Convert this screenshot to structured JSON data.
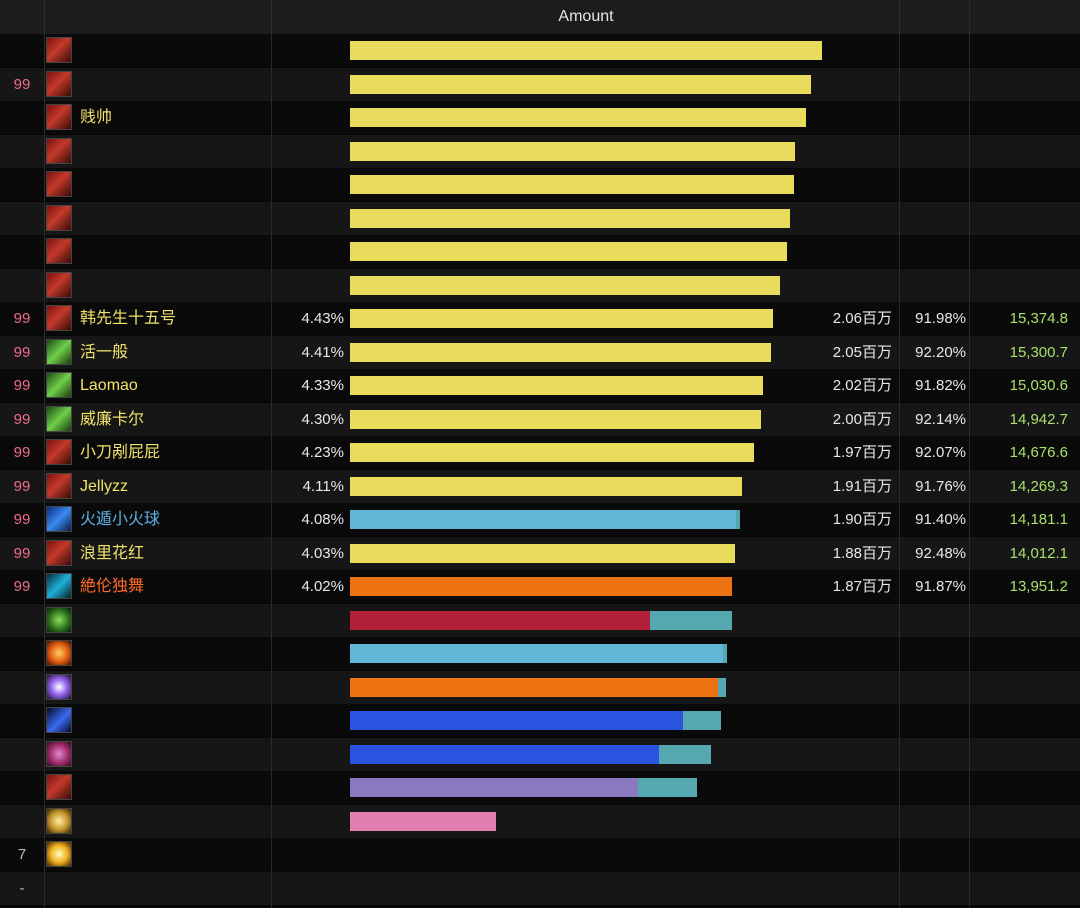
{
  "header": {
    "title": "Amount"
  },
  "colors": {
    "yellow": "#e9db5b",
    "light_blue": "#62b7d8",
    "orange": "#ec7212",
    "red": "#b3203a",
    "teal": "#56a8b0",
    "blue": "#2a54e0",
    "purple": "#8a78c0",
    "pink": "#e07fb0"
  },
  "rows": [
    {
      "rank": "",
      "icon": "warrior-icon",
      "name": "",
      "name_color": "yellow",
      "percent": "",
      "amount": "",
      "active": "",
      "dps": "",
      "bar": [
        {
          "fraction": 1.0,
          "color": "yellow"
        }
      ]
    },
    {
      "rank": "99",
      "icon": "warrior-icon",
      "name": "",
      "name_color": "yellow",
      "percent": "",
      "amount": "",
      "active": "",
      "dps": "",
      "bar": [
        {
          "fraction": 0.977,
          "color": "yellow"
        }
      ]
    },
    {
      "rank": "",
      "icon": "warrior-icon",
      "name": "贱帅",
      "name_color": "yellow",
      "percent": "",
      "amount": "",
      "active": "",
      "dps": "",
      "bar": [
        {
          "fraction": 0.967,
          "color": "yellow"
        }
      ]
    },
    {
      "rank": "",
      "icon": "warrior-icon",
      "name": "",
      "name_color": "yellow",
      "percent": "",
      "amount": "",
      "active": "",
      "dps": "",
      "bar": [
        {
          "fraction": 0.942,
          "color": "yellow"
        }
      ]
    },
    {
      "rank": "",
      "icon": "warrior-icon",
      "name": "",
      "name_color": "yellow",
      "percent": "",
      "amount": "",
      "active": "",
      "dps": "",
      "bar": [
        {
          "fraction": 0.94,
          "color": "yellow"
        }
      ]
    },
    {
      "rank": "",
      "icon": "warrior-icon",
      "name": "",
      "name_color": "yellow",
      "percent": "",
      "amount": "",
      "active": "",
      "dps": "",
      "bar": [
        {
          "fraction": 0.932,
          "color": "yellow"
        }
      ]
    },
    {
      "rank": "",
      "icon": "warrior-icon",
      "name": "",
      "name_color": "yellow",
      "percent": "",
      "amount": "",
      "active": "",
      "dps": "",
      "bar": [
        {
          "fraction": 0.925,
          "color": "yellow"
        }
      ]
    },
    {
      "rank": "",
      "icon": "warrior-icon",
      "name": "",
      "name_color": "yellow",
      "percent": "",
      "amount": "",
      "active": "",
      "dps": "",
      "bar": [
        {
          "fraction": 0.91,
          "color": "yellow"
        }
      ]
    },
    {
      "rank": "99",
      "icon": "warrior-icon",
      "name": "韩先生十五号",
      "name_color": "yellow",
      "percent": "4.43%",
      "amount": "2.06百万",
      "active": "91.98%",
      "dps": "15,374.8",
      "bar": [
        {
          "fraction": 0.896,
          "color": "yellow"
        }
      ]
    },
    {
      "rank": "99",
      "icon": "crossed-swords-icon",
      "name": "活一般",
      "name_color": "yellow",
      "percent": "4.41%",
      "amount": "2.05百万",
      "active": "92.20%",
      "dps": "15,300.7",
      "bar": [
        {
          "fraction": 0.892,
          "color": "yellow"
        }
      ]
    },
    {
      "rank": "99",
      "icon": "crossed-swords-icon",
      "name": "Laomao",
      "name_color": "yellow",
      "percent": "4.33%",
      "amount": "2.02百万",
      "active": "91.82%",
      "dps": "15,030.6",
      "bar": [
        {
          "fraction": 0.875,
          "color": "yellow"
        }
      ]
    },
    {
      "rank": "99",
      "icon": "crossed-swords-icon",
      "name": "威廉卡尔",
      "name_color": "yellow",
      "percent": "4.30%",
      "amount": "2.00百万",
      "active": "92.14%",
      "dps": "14,942.7",
      "bar": [
        {
          "fraction": 0.87,
          "color": "yellow"
        }
      ]
    },
    {
      "rank": "99",
      "icon": "warrior-icon",
      "name": "小刀剐屁屁",
      "name_color": "yellow",
      "percent": "4.23%",
      "amount": "1.97百万",
      "active": "92.07%",
      "dps": "14,676.6",
      "bar": [
        {
          "fraction": 0.855,
          "color": "yellow"
        }
      ]
    },
    {
      "rank": "99",
      "icon": "warrior-icon",
      "name": "Jellyzz",
      "name_color": "yellow",
      "percent": "4.11%",
      "amount": "1.91百万",
      "active": "91.76%",
      "dps": "14,269.3",
      "bar": [
        {
          "fraction": 0.831,
          "color": "yellow"
        }
      ]
    },
    {
      "rank": "99",
      "icon": "frost-mage-icon",
      "name": "火遁小火球",
      "name_color": "blue",
      "percent": "4.08%",
      "amount": "1.90百万",
      "active": "91.40%",
      "dps": "14,181.1",
      "bar": [
        {
          "fraction": 0.818,
          "color": "light_blue"
        },
        {
          "fraction": 0.008,
          "color": "teal"
        }
      ]
    },
    {
      "rank": "99",
      "icon": "warrior-icon",
      "name": "浪里花红",
      "name_color": "yellow",
      "percent": "4.03%",
      "amount": "1.88百万",
      "active": "92.48%",
      "dps": "14,012.1",
      "bar": [
        {
          "fraction": 0.815,
          "color": "yellow"
        }
      ]
    },
    {
      "rank": "99",
      "icon": "shaman-icon",
      "name": "絶伦独舞",
      "name_color": "orange",
      "percent": "4.02%",
      "amount": "1.87百万",
      "active": "91.87%",
      "dps": "13,951.2",
      "bar": [
        {
          "fraction": 0.81,
          "color": "orange"
        }
      ]
    },
    {
      "rank": "",
      "icon": "poison-icon",
      "name": "",
      "name_color": "yellow",
      "percent": "",
      "amount": "",
      "active": "",
      "dps": "",
      "bar": [
        {
          "fraction": 0.635,
          "color": "red"
        },
        {
          "fraction": 0.173,
          "color": "teal"
        }
      ]
    },
    {
      "rank": "",
      "icon": "fire-icon",
      "name": "",
      "name_color": "yellow",
      "percent": "",
      "amount": "",
      "active": "",
      "dps": "",
      "bar": [
        {
          "fraction": 0.79,
          "color": "light_blue"
        },
        {
          "fraction": 0.008,
          "color": "teal"
        }
      ]
    },
    {
      "rank": "",
      "icon": "arcane-icon",
      "name": "",
      "name_color": "yellow",
      "percent": "",
      "amount": "",
      "active": "",
      "dps": "",
      "bar": [
        {
          "fraction": 0.78,
          "color": "orange"
        },
        {
          "fraction": 0.018,
          "color": "teal"
        }
      ]
    },
    {
      "rank": "",
      "icon": "lightning-icon",
      "name": "",
      "name_color": "yellow",
      "percent": "",
      "amount": "",
      "active": "",
      "dps": "",
      "bar": [
        {
          "fraction": 0.705,
          "color": "blue"
        },
        {
          "fraction": 0.08,
          "color": "teal"
        }
      ]
    },
    {
      "rank": "",
      "icon": "demon-icon",
      "name": "",
      "name_color": "yellow",
      "percent": "",
      "amount": "",
      "active": "",
      "dps": "",
      "bar": [
        {
          "fraction": 0.655,
          "color": "blue"
        },
        {
          "fraction": 0.11,
          "color": "teal"
        }
      ]
    },
    {
      "rank": "",
      "icon": "warrior-icon",
      "name": "",
      "name_color": "yellow",
      "percent": "",
      "amount": "",
      "active": "",
      "dps": "",
      "bar": [
        {
          "fraction": 0.61,
          "color": "purple"
        },
        {
          "fraction": 0.125,
          "color": "teal"
        }
      ]
    },
    {
      "rank": "",
      "icon": "holy-icon",
      "name": "",
      "name_color": "yellow",
      "percent": "",
      "amount": "",
      "active": "",
      "dps": "",
      "bar": [
        {
          "fraction": 0.31,
          "color": "pink"
        }
      ]
    },
    {
      "rank": "7",
      "icon": "sun-icon",
      "name": "",
      "name_color": "yellow",
      "percent": "",
      "amount": "",
      "active": "",
      "dps": "",
      "bar": []
    },
    {
      "rank": "-",
      "icon": "",
      "name": "",
      "name_color": "yellow",
      "percent": "",
      "amount": "",
      "active": "",
      "dps": "",
      "bar": []
    }
  ]
}
